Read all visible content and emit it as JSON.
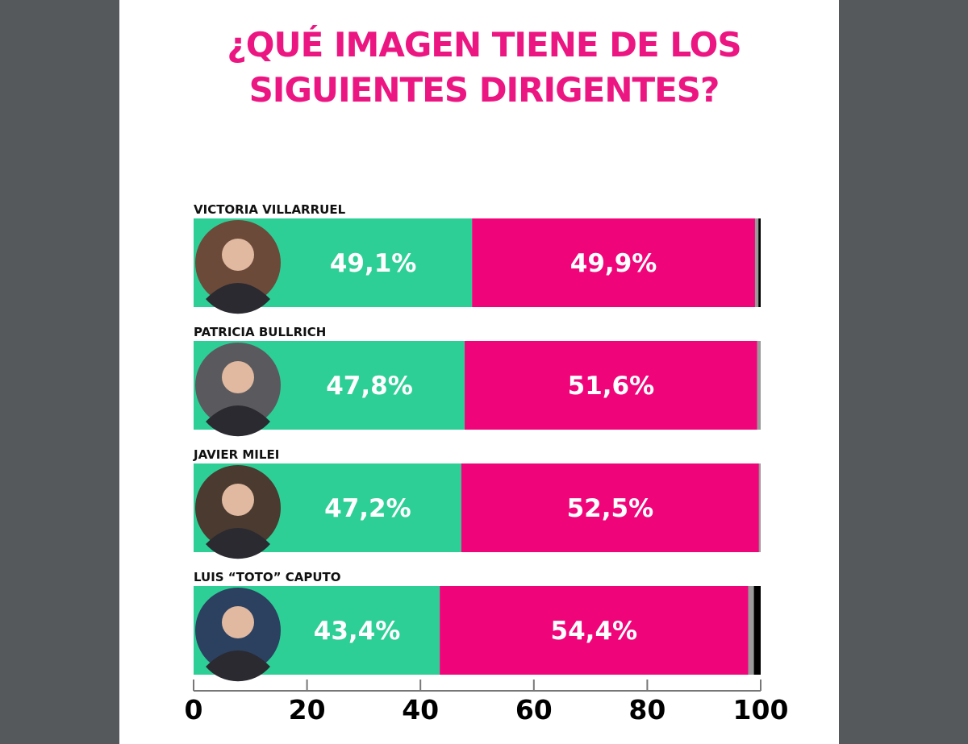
{
  "title_line1": "¿QUÉ IMAGEN TIENE DE LOS",
  "title_line2": "SIGUIENTES DIRIGENTES?",
  "colors": {
    "positive": "#2ecf96",
    "negative": "#f0047a",
    "other": "#9a9a9a",
    "nsnc": "#000000",
    "title": "#ec1682",
    "background": "#55595c"
  },
  "chart_data": {
    "type": "bar",
    "orientation": "horizontal-stacked",
    "categories": [
      "VICTORIA VILLARRUEL",
      "PATRICIA BULLRICH",
      "JAVIER MILEI",
      "LUIS “TOTO” CAPUTO"
    ],
    "series": [
      {
        "values": [
          49.1,
          47.8,
          47.2,
          43.4
        ],
        "labels": [
          "49,1%",
          "47,8%",
          "47,2%",
          "43,4%"
        ],
        "color": "#2ecf96"
      },
      {
        "values": [
          49.9,
          51.6,
          52.5,
          54.4
        ],
        "labels": [
          "49,9%",
          "51,6%",
          "52,5%",
          "54,4%"
        ],
        "color": "#f0047a"
      },
      {
        "values": [
          0.6,
          0.6,
          0.3,
          1.0
        ],
        "color": "#9a9a9a"
      },
      {
        "values": [
          0.4,
          0,
          0,
          1.2
        ],
        "color": "#000000"
      }
    ],
    "xlim": [
      0,
      100
    ],
    "xticks": [
      "0",
      "20",
      "40",
      "60",
      "80",
      "100"
    ],
    "grid": false
  }
}
